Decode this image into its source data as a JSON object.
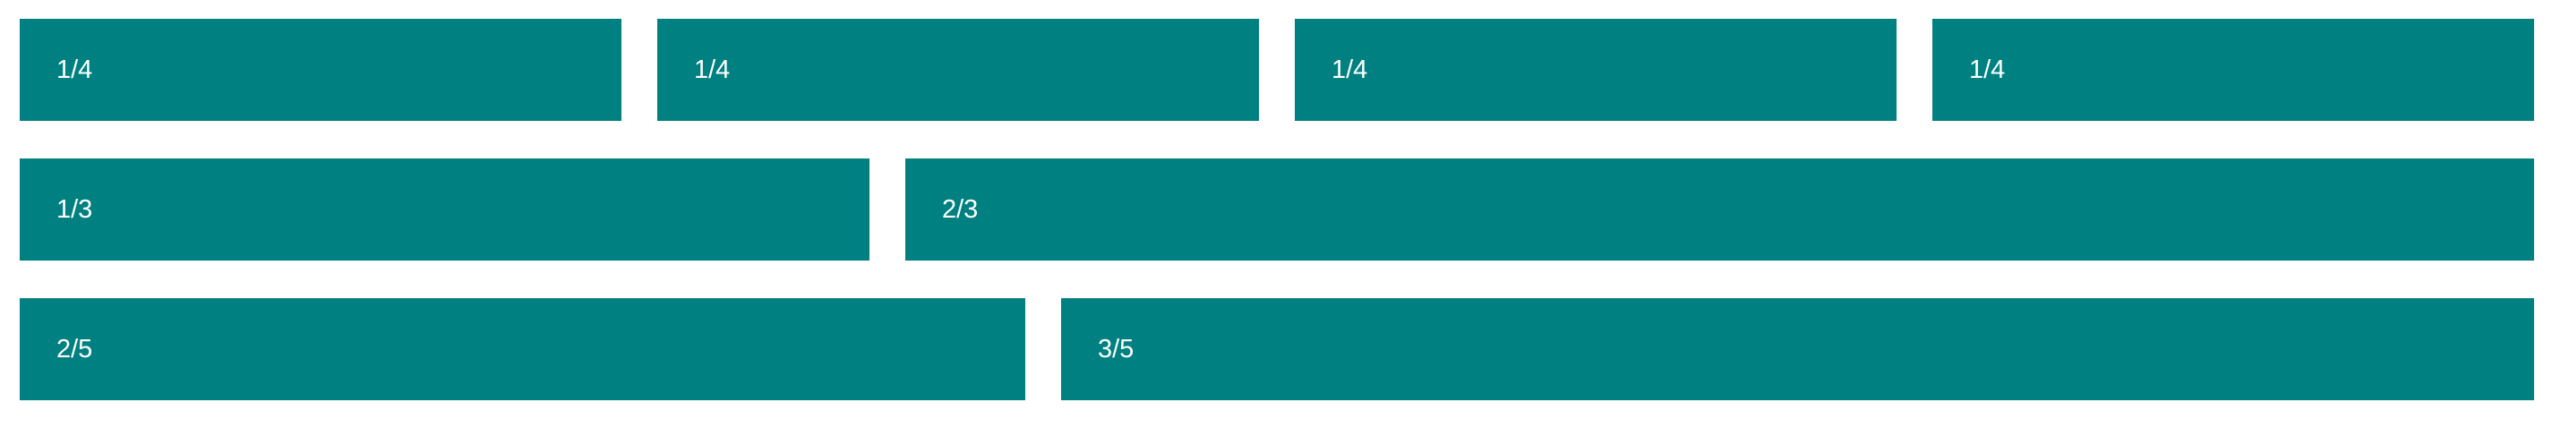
{
  "rows": [
    {
      "cells": [
        {
          "label": "1/4"
        },
        {
          "label": "1/4"
        },
        {
          "label": "1/4"
        },
        {
          "label": "1/4"
        }
      ]
    },
    {
      "cells": [
        {
          "label": "1/3"
        },
        {
          "label": "2/3"
        }
      ]
    },
    {
      "cells": [
        {
          "label": "2/5"
        },
        {
          "label": "3/5"
        }
      ]
    }
  ],
  "colors": {
    "cell_background": "#008080",
    "cell_text": "#ffffff",
    "page_background": "#ffffff"
  }
}
